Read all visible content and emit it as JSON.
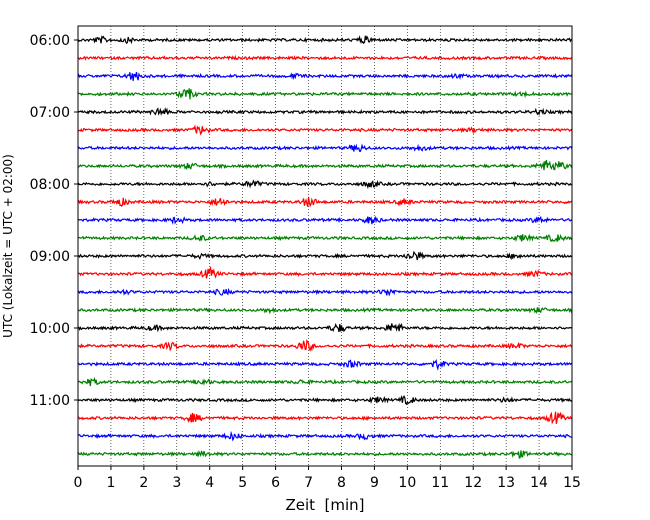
{
  "chart_data": {
    "type": "line",
    "title": "",
    "xlabel": "Zeit  [min]",
    "ylabel": "UTC (Lokalzeit = UTC + 02:00)",
    "xlim": [
      0,
      15
    ],
    "x_ticks": [
      "0",
      "1",
      "2",
      "3",
      "4",
      "5",
      "6",
      "7",
      "8",
      "9",
      "10",
      "11",
      "12",
      "13",
      "14",
      "15"
    ],
    "y_tick_labels": [
      "06:00",
      "07:00",
      "08:00",
      "09:00",
      "10:00",
      "11:00"
    ],
    "y_tick_rows": [
      0,
      4,
      8,
      12,
      16,
      20
    ],
    "grid": "vertical dotted",
    "line_colors": [
      "#000000",
      "#ff0000",
      "#0000ff",
      "#008000"
    ],
    "rows_per_hour": 4,
    "minutes_per_row": 15,
    "series": [
      {
        "start": "06:00",
        "events": [
          [
            0.7,
            0.5
          ],
          [
            1.5,
            0.4
          ],
          [
            8.7,
            0.6
          ]
        ]
      },
      {
        "start": "06:15",
        "events": []
      },
      {
        "start": "06:30",
        "events": [
          [
            1.7,
            1.0
          ],
          [
            6.6,
            0.3
          ],
          [
            11.5,
            0.3
          ]
        ]
      },
      {
        "start": "06:45",
        "events": [
          [
            3.3,
            1.2
          ],
          [
            13.5,
            0.3
          ]
        ]
      },
      {
        "start": "07:00",
        "events": [
          [
            2.5,
            0.7
          ],
          [
            14.0,
            0.4
          ]
        ]
      },
      {
        "start": "07:15",
        "events": [
          [
            3.7,
            0.8
          ],
          [
            12.0,
            0.3
          ]
        ]
      },
      {
        "start": "07:30",
        "events": [
          [
            8.5,
            0.7
          ],
          [
            10.4,
            0.4
          ]
        ]
      },
      {
        "start": "07:45",
        "events": [
          [
            3.4,
            0.5
          ],
          [
            14.2,
            1.0
          ],
          [
            14.6,
            0.8
          ]
        ]
      },
      {
        "start": "08:00",
        "events": [
          [
            5.3,
            0.6
          ],
          [
            8.9,
            0.6
          ],
          [
            4.0,
            0.3
          ]
        ]
      },
      {
        "start": "08:15",
        "events": [
          [
            1.3,
            0.7
          ],
          [
            4.3,
            0.8
          ],
          [
            7.0,
            0.9
          ],
          [
            9.9,
            0.5
          ]
        ]
      },
      {
        "start": "08:30",
        "events": [
          [
            3.0,
            0.5
          ],
          [
            8.9,
            0.7
          ],
          [
            14.0,
            0.5
          ]
        ]
      },
      {
        "start": "08:45",
        "events": [
          [
            3.7,
            0.5
          ],
          [
            13.5,
            0.6
          ],
          [
            14.5,
            0.7
          ]
        ]
      },
      {
        "start": "09:00",
        "events": [
          [
            10.2,
            0.9
          ],
          [
            13.3,
            0.4
          ],
          [
            3.7,
            0.3
          ]
        ]
      },
      {
        "start": "09:15",
        "events": [
          [
            4.0,
            1.0
          ],
          [
            13.9,
            0.5
          ]
        ]
      },
      {
        "start": "09:30",
        "events": [
          [
            4.4,
            0.5
          ],
          [
            9.4,
            0.6
          ],
          [
            1.4,
            0.3
          ]
        ]
      },
      {
        "start": "09:45",
        "events": [
          [
            5.8,
            0.3
          ],
          [
            14.0,
            0.4
          ]
        ]
      },
      {
        "start": "10:00",
        "events": [
          [
            7.9,
            0.8
          ],
          [
            9.6,
            1.0
          ],
          [
            2.3,
            0.4
          ]
        ]
      },
      {
        "start": "10:15",
        "events": [
          [
            2.8,
            0.6
          ],
          [
            6.9,
            1.1
          ],
          [
            13.3,
            0.4
          ]
        ]
      },
      {
        "start": "10:30",
        "events": [
          [
            8.3,
            0.6
          ],
          [
            10.9,
            0.7
          ]
        ]
      },
      {
        "start": "10:45",
        "events": [
          [
            0.4,
            0.6
          ],
          [
            3.8,
            0.5
          ],
          [
            6.8,
            0.3
          ]
        ]
      },
      {
        "start": "11:00",
        "events": [
          [
            10.0,
            0.7
          ],
          [
            9.1,
            0.5
          ],
          [
            13.0,
            0.3
          ]
        ]
      },
      {
        "start": "11:15",
        "events": [
          [
            3.5,
            0.8
          ],
          [
            14.5,
            1.1
          ]
        ]
      },
      {
        "start": "11:30",
        "events": [
          [
            4.7,
            0.6
          ],
          [
            8.7,
            0.5
          ]
        ]
      },
      {
        "start": "11:45",
        "events": [
          [
            13.4,
            0.6
          ],
          [
            3.8,
            0.4
          ]
        ]
      }
    ]
  }
}
